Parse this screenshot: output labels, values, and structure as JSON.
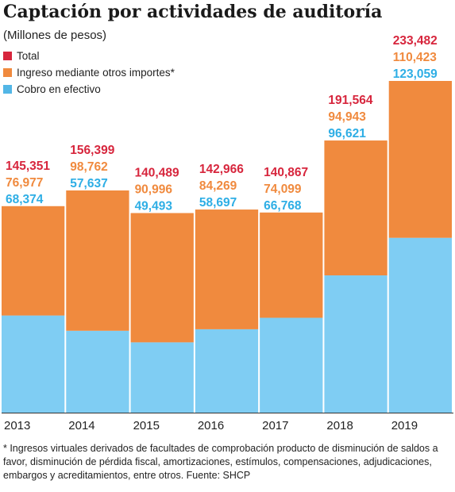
{
  "title": "Captación por actividades de auditoría",
  "subtitle": "(Millones de pesos)",
  "legend": [
    {
      "label": "Total",
      "color": "#d7263d"
    },
    {
      "label": "Ingreso mediante otros importes*",
      "color": "#f08a3e"
    },
    {
      "label": "Cobro en efectivo",
      "color": "#52b6e6"
    }
  ],
  "colors": {
    "total_text": "#d7263d",
    "otros_text": "#f08a3e",
    "efectivo_text": "#2eaee5",
    "otros_fill": "#f08a3e",
    "efectivo_fill": "#7fcdf3"
  },
  "chart_data": {
    "type": "bar",
    "stacked": true,
    "categories": [
      "2013",
      "2014",
      "2015",
      "2016",
      "2017",
      "2018",
      "2019"
    ],
    "series": [
      {
        "name": "Cobro en efectivo",
        "values": [
          68374,
          57637,
          49493,
          58697,
          66768,
          96621,
          123059
        ]
      },
      {
        "name": "Ingreso mediante otros importes*",
        "values": [
          76977,
          98762,
          90996,
          84269,
          74099,
          94943,
          110423
        ]
      }
    ],
    "totals": [
      145351,
      156399,
      140489,
      142966,
      140867,
      191564,
      233482
    ],
    "labels": {
      "total": [
        "145,351",
        "156,399",
        "140,489",
        "142,966",
        "140,867",
        "191,564",
        "233,482"
      ],
      "otros": [
        "76,977",
        "98,762",
        "90,996",
        "84,269",
        "74,099",
        "94,943",
        "110,423"
      ],
      "efectivo": [
        "68,374",
        "57,637",
        "49,493",
        "58,697",
        "66,768",
        "96,621",
        "123,059"
      ]
    },
    "ylim": [
      0,
      240000
    ],
    "grid": false
  },
  "footnote": "* Ingresos virtuales derivados de facultades de comprobación producto de disminución de saldos a favor, disminución de pérdida fiscal, amortizaciones, estímulos, compensaciones, adjudicaciones, embargos y acreditamientos, entre otros. Fuente: SHCP"
}
